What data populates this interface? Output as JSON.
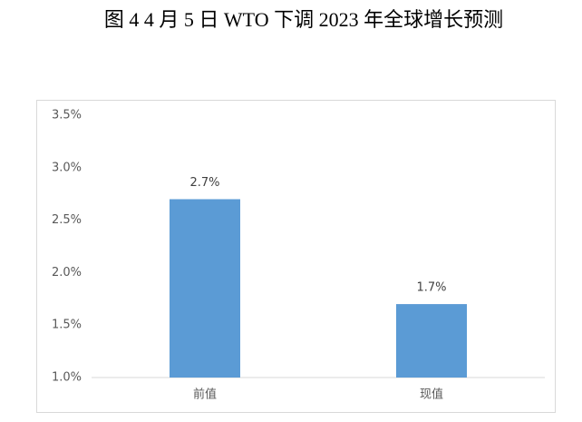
{
  "chart_data": {
    "type": "bar",
    "title": "图 4    4 月 5 日 WTO 下调 2023 年全球增长预测",
    "categories": [
      "前值",
      "现值"
    ],
    "values": [
      2.7,
      1.7
    ],
    "value_labels": [
      "2.7%",
      "1.7%"
    ],
    "color": "#5b9bd5",
    "ylim": [
      1.0,
      3.5
    ],
    "yticks": [
      {
        "value": 1.0,
        "label": "1.0%"
      },
      {
        "value": 1.5,
        "label": "1.5%"
      },
      {
        "value": 2.0,
        "label": "2.0%"
      },
      {
        "value": 2.5,
        "label": "2.5%"
      },
      {
        "value": 3.0,
        "label": "3.0%"
      },
      {
        "value": 3.5,
        "label": "3.5%"
      }
    ],
    "grid": false
  }
}
